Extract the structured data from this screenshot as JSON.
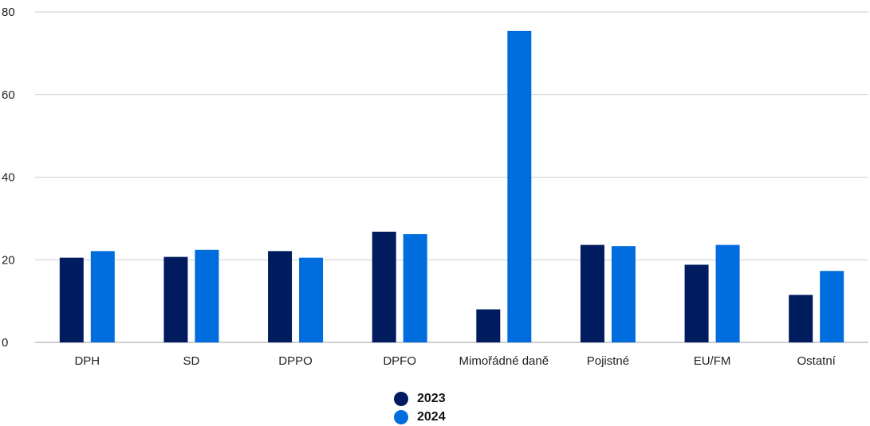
{
  "chart_data": {
    "type": "bar",
    "categories": [
      "DPH",
      "SD",
      "DPPO",
      "DPFO",
      "Mimořádné daně",
      "Pojistné",
      "EU/FM",
      "Ostatní"
    ],
    "series": [
      {
        "name": "2023",
        "color": "#001c5e",
        "values": [
          20.5,
          20.7,
          22.1,
          26.8,
          8.0,
          23.6,
          18.8,
          11.5
        ]
      },
      {
        "name": "2024",
        "color": "#006ddf",
        "values": [
          22.1,
          22.4,
          20.5,
          26.2,
          75.4,
          23.3,
          23.6,
          17.3
        ]
      }
    ],
    "yticks": [
      "0",
      "20",
      "40",
      "60",
      "80"
    ],
    "ylim": [
      0,
      80
    ],
    "grid": true,
    "legend_position": "bottom",
    "title": "",
    "xlabel": "",
    "ylabel": ""
  }
}
